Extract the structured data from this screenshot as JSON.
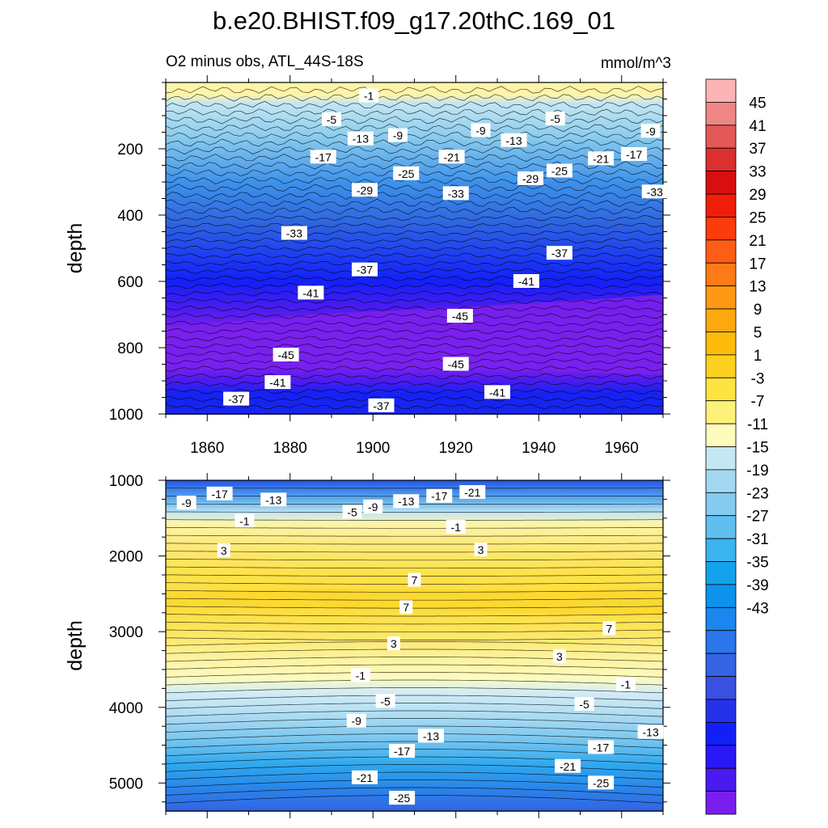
{
  "chart_data": {
    "type": "contour",
    "title": "b.e20.BHIST.f09_g17.20thC.169_01",
    "variable_label": "O2 minus obs, ATL_44S-18S",
    "units": "mmol/m^3",
    "colorbar": {
      "levels": [
        45,
        41,
        37,
        33,
        29,
        25,
        21,
        17,
        13,
        9,
        5,
        1,
        -3,
        -7,
        -11,
        -15,
        -19,
        -23,
        -27,
        -31,
        -35,
        -39,
        -43
      ],
      "colors": [
        "#fbb5b6",
        "#f08684",
        "#e45858",
        "#dc3030",
        "#d90f0f",
        "#f01e08",
        "#fb3c0d",
        "#fd5d14",
        "#fd7b16",
        "#fd9913",
        "#fca90f",
        "#fdbc0a",
        "#fdd020",
        "#fde442",
        "#fdf17a",
        "#fdfcbd",
        "#c5e7f3",
        "#a3d9f0",
        "#84cbef",
        "#5fc0ef",
        "#3bb3ef",
        "#14a2ec",
        "#0f92ec",
        "#1a86ee",
        "#2a76ea",
        "#3463e4",
        "#3a50e0",
        "#2632ea",
        "#1220f8",
        "#2a18f6",
        "#4a1af0",
        "#7a1ef0"
      ]
    },
    "panels": [
      {
        "name": "upper",
        "xlim": [
          1850,
          1970
        ],
        "ylim": [
          0,
          1000
        ],
        "y_inverted": true,
        "xticks": [
          1860,
          1880,
          1900,
          1920,
          1940,
          1960
        ],
        "yticks": [
          200,
          400,
          600,
          800,
          1000
        ],
        "ylabel": "depth",
        "contour_labels": [
          {
            "v": "-1",
            "x": 1899,
            "y": 40
          },
          {
            "v": "-5",
            "x": 1890,
            "y": 112
          },
          {
            "v": "-5",
            "x": 1944,
            "y": 110
          },
          {
            "v": "-9",
            "x": 1906,
            "y": 160
          },
          {
            "v": "-9",
            "x": 1926,
            "y": 145
          },
          {
            "v": "-9",
            "x": 1967,
            "y": 147
          },
          {
            "v": "-13",
            "x": 1897,
            "y": 170
          },
          {
            "v": "-13",
            "x": 1934,
            "y": 175
          },
          {
            "v": "-17",
            "x": 1888,
            "y": 225
          },
          {
            "v": "-17",
            "x": 1963,
            "y": 217
          },
          {
            "v": "-21",
            "x": 1919,
            "y": 225
          },
          {
            "v": "-21",
            "x": 1955,
            "y": 230
          },
          {
            "v": "-25",
            "x": 1908,
            "y": 275
          },
          {
            "v": "-25",
            "x": 1945,
            "y": 267
          },
          {
            "v": "-29",
            "x": 1898,
            "y": 325
          },
          {
            "v": "-29",
            "x": 1938,
            "y": 290
          },
          {
            "v": "-33",
            "x": 1920,
            "y": 335
          },
          {
            "v": "-33",
            "x": 1968,
            "y": 330
          },
          {
            "v": "-33",
            "x": 1881,
            "y": 455
          },
          {
            "v": "-37",
            "x": 1898,
            "y": 565
          },
          {
            "v": "-37",
            "x": 1945,
            "y": 515
          },
          {
            "v": "-41",
            "x": 1885,
            "y": 635
          },
          {
            "v": "-41",
            "x": 1937,
            "y": 600
          },
          {
            "v": "-45",
            "x": 1921,
            "y": 705
          },
          {
            "v": "-45",
            "x": 1879,
            "y": 822
          },
          {
            "v": "-45",
            "x": 1920,
            "y": 850
          },
          {
            "v": "-41",
            "x": 1877,
            "y": 905
          },
          {
            "v": "-41",
            "x": 1930,
            "y": 935
          },
          {
            "v": "-37",
            "x": 1867,
            "y": 955
          },
          {
            "v": "-37",
            "x": 1902,
            "y": 975
          }
        ]
      },
      {
        "name": "lower",
        "xlim": [
          1850,
          1970
        ],
        "ylim": [
          1000,
          5370
        ],
        "y_inverted": true,
        "yticks": [
          1000,
          2000,
          3000,
          4000,
          5000
        ],
        "ylabel": "depth",
        "contour_labels": [
          {
            "v": "-9",
            "x": 1855,
            "y": 1300
          },
          {
            "v": "-17",
            "x": 1863,
            "y": 1180
          },
          {
            "v": "-13",
            "x": 1876,
            "y": 1260
          },
          {
            "v": "-5",
            "x": 1895,
            "y": 1420
          },
          {
            "v": "-9",
            "x": 1900,
            "y": 1350
          },
          {
            "v": "-13",
            "x": 1908,
            "y": 1280
          },
          {
            "v": "-17",
            "x": 1916,
            "y": 1210
          },
          {
            "v": "-21",
            "x": 1924,
            "y": 1160
          },
          {
            "v": "-1",
            "x": 1869,
            "y": 1540
          },
          {
            "v": "-1",
            "x": 1920,
            "y": 1620
          },
          {
            "v": "3",
            "x": 1864,
            "y": 1930
          },
          {
            "v": "3",
            "x": 1926,
            "y": 1920
          },
          {
            "v": "7",
            "x": 1910,
            "y": 2320
          },
          {
            "v": "7",
            "x": 1908,
            "y": 2680
          },
          {
            "v": "7",
            "x": 1957,
            "y": 2960
          },
          {
            "v": "3",
            "x": 1905,
            "y": 3160
          },
          {
            "v": "3",
            "x": 1945,
            "y": 3330
          },
          {
            "v": "-1",
            "x": 1897,
            "y": 3580
          },
          {
            "v": "-1",
            "x": 1961,
            "y": 3700
          },
          {
            "v": "-5",
            "x": 1903,
            "y": 3920
          },
          {
            "v": "-5",
            "x": 1951,
            "y": 3960
          },
          {
            "v": "-9",
            "x": 1896,
            "y": 4180
          },
          {
            "v": "-13",
            "x": 1914,
            "y": 4380
          },
          {
            "v": "-13",
            "x": 1967,
            "y": 4330
          },
          {
            "v": "-17",
            "x": 1907,
            "y": 4580
          },
          {
            "v": "-17",
            "x": 1955,
            "y": 4530
          },
          {
            "v": "-21",
            "x": 1898,
            "y": 4930
          },
          {
            "v": "-21",
            "x": 1947,
            "y": 4780
          },
          {
            "v": "-25",
            "x": 1907,
            "y": 5200
          },
          {
            "v": "-25",
            "x": 1955,
            "y": 5000
          }
        ]
      }
    ]
  }
}
